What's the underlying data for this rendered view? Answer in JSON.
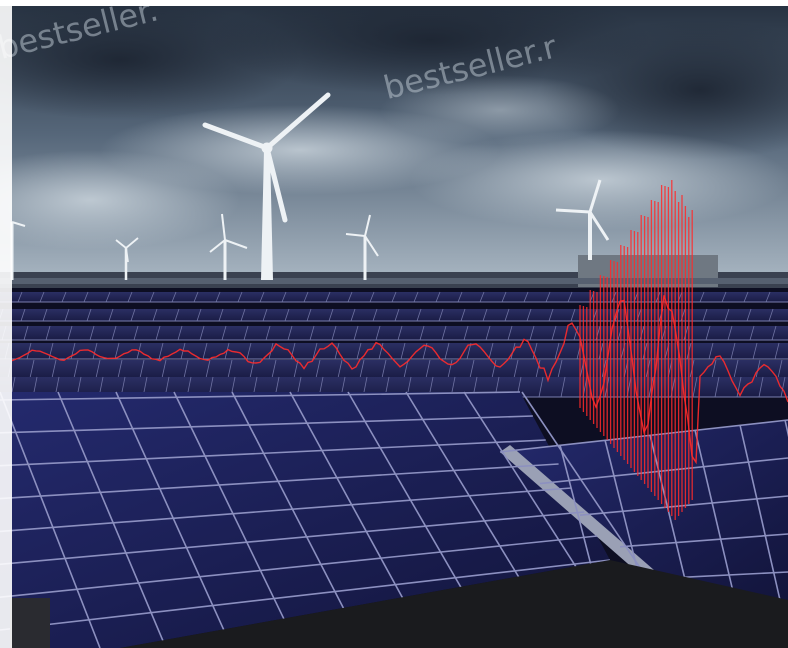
{
  "scene": {
    "subject": "wind-turbines-and-solar-farm",
    "colors": {
      "sky_dark": "#2f3d4f",
      "sky_light": "#a9b8c4",
      "panel": "#1c1f55",
      "panel_line": "#8c90b8",
      "signal": "#ff2b2b"
    }
  },
  "watermark": {
    "text_1": "bestseller.",
    "text_2": "bestseller.r"
  }
}
